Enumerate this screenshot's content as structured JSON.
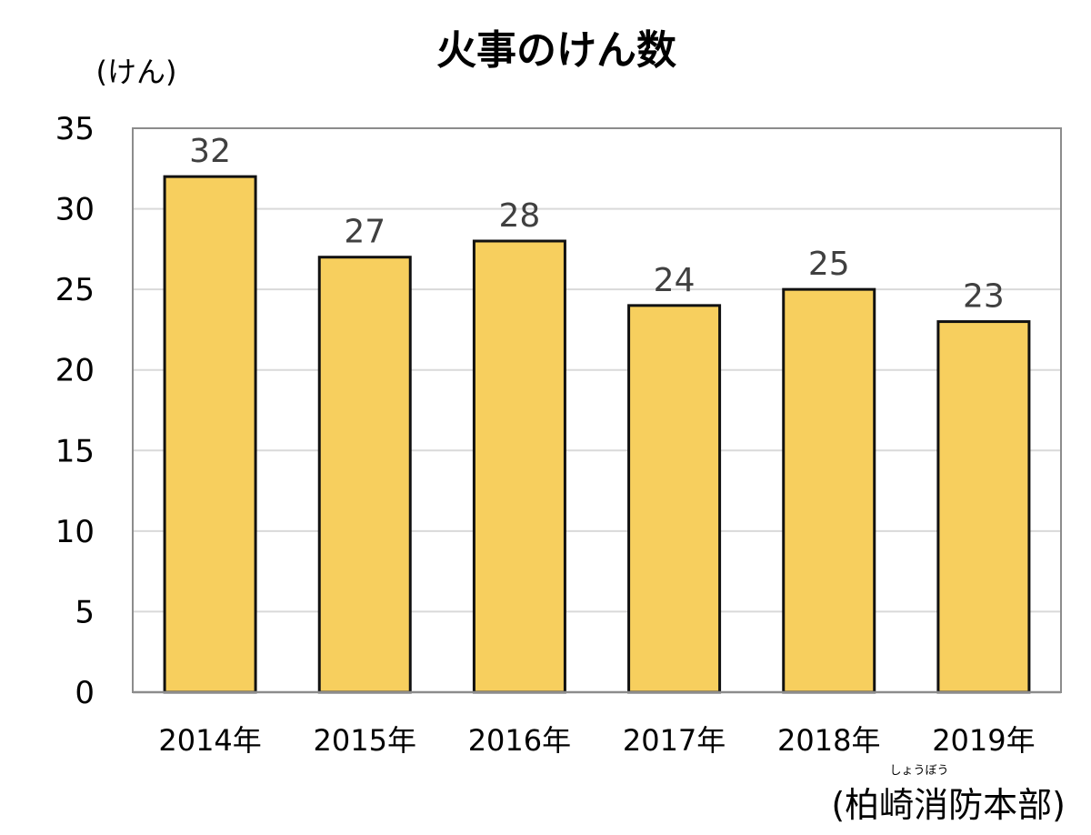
{
  "chart_data": {
    "type": "bar",
    "title": "火事のけん数",
    "ylabel": "(けん)",
    "categories": [
      "2014年",
      "2015年",
      "2016年",
      "2017年",
      "2018年",
      "2019年"
    ],
    "values": [
      32,
      27,
      28,
      24,
      25,
      23
    ],
    "ylim": [
      0,
      35
    ],
    "yticks": [
      0,
      5,
      10,
      15,
      20,
      25,
      30,
      35
    ],
    "grid": true,
    "data_labels": true,
    "bar_color": "#F7CF5E",
    "bar_edge_color": "#111111",
    "grid_color": "#D9D9D9",
    "data_label_color": "#404040"
  },
  "source": {
    "text": "(柏崎消防本部)",
    "ruby": "しょうぼう"
  }
}
